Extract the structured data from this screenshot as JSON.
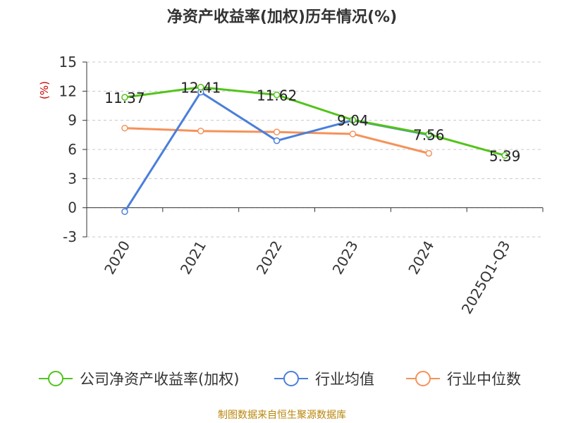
{
  "chart_data": {
    "type": "line",
    "title": "净资产收益率(加权)历年情况(%)",
    "ylabel": "(%)",
    "xlabel": "",
    "categories": [
      "2020",
      "2021",
      "2022",
      "2023",
      "2024",
      "2025Q1-Q3"
    ],
    "ylim": [
      -3,
      15
    ],
    "yticks": [
      15,
      12,
      9,
      6,
      3,
      0,
      -3
    ],
    "grid": true,
    "legend_position": "bottom",
    "series": [
      {
        "name": "公司净资产收益率(加权)",
        "color": "#52c41a",
        "values": [
          11.37,
          12.41,
          11.62,
          9.04,
          7.56,
          5.39
        ],
        "labels": [
          "11.37",
          "12.41",
          "11.62",
          "9.04",
          "7.56",
          "5.39"
        ]
      },
      {
        "name": "行业均值",
        "color": "#4a7fdb",
        "values": [
          -0.4,
          11.9,
          6.9,
          9.0,
          7.5,
          null
        ]
      },
      {
        "name": "行业中位数",
        "color": "#f5925a",
        "values": [
          8.2,
          7.9,
          7.8,
          7.6,
          5.6,
          null
        ]
      }
    ]
  },
  "footer": {
    "source": "制图数据来自恒生聚源数据库"
  }
}
